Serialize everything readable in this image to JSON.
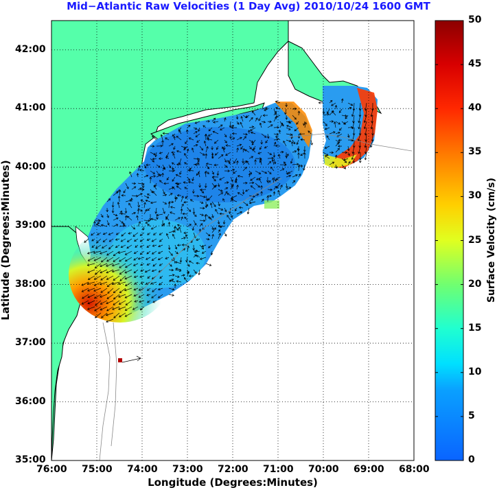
{
  "title": "Mid−Atlantic Raw Velocities (1 Day Avg) 2010/10/24 1600 GMT",
  "xlabel": "Longitude (Degrees:Minutes)",
  "ylabel": "Latitude (Degrees:Minutes)",
  "colorbar": {
    "label": "Surface Velocity (cm/s)",
    "min": 0,
    "max": 50,
    "ticks": [
      "0",
      "5",
      "10",
      "15",
      "20",
      "25",
      "30",
      "35",
      "40",
      "45",
      "50"
    ],
    "colors": [
      "#0a64ff",
      "#00c8ff",
      "#16f5c8",
      "#7dff64",
      "#ffff00",
      "#ff9600",
      "#ff1e00",
      "#8c0000"
    ]
  },
  "map": {
    "lon_range": [
      -76,
      -68
    ],
    "lat_range": [
      35,
      42.5
    ],
    "x_ticks": [
      "76:00",
      "75:00",
      "74:00",
      "73:00",
      "72:00",
      "71:00",
      "70:00",
      "69:00",
      "68:00"
    ],
    "y_ticks": [
      "35:00",
      "36:00",
      "37:00",
      "38:00",
      "39:00",
      "40:00",
      "41:00",
      "42:00"
    ],
    "land_color": "#55ffaa",
    "grid": "dotted"
  }
}
